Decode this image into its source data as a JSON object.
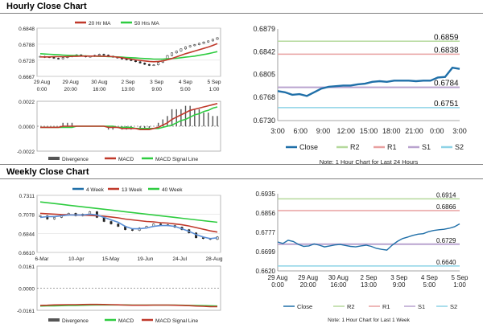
{
  "sections": {
    "hourly_title": "Hourly Close Chart",
    "weekly_title": "Weekly Close Chart"
  },
  "colors": {
    "ma_short": "#c0392b",
    "ma_long": "#2ecc40",
    "macd_line": "#c0392b",
    "macd_signal": "#2ecc40",
    "close_line": "#1f6fa8",
    "r2": "#b5d99c",
    "r1": "#e8a0a0",
    "s1": "#b9a3cf",
    "s2": "#8ed3e6",
    "divergence": "#555555"
  },
  "chart_data": [
    {
      "id": "hourly-price",
      "type": "line",
      "legend": [
        "20 Hr MA",
        "50 Hrs MA"
      ],
      "y_ticks": [
        "0.6848",
        "0.6788",
        "0.6728",
        "0.6667"
      ],
      "ylim": [
        0.6667,
        0.6848
      ],
      "x_ticks": [
        [
          "29 Aug",
          "0:00"
        ],
        [
          "29 Aug",
          "20:00"
        ],
        [
          "30 Aug",
          "16:00"
        ],
        [
          "2 Sep",
          "13:00"
        ],
        [
          "3 Sep",
          "9:00"
        ],
        [
          "4 Sep",
          "5:00"
        ],
        [
          "5 Sep",
          "1:00"
        ]
      ],
      "close": [
        0.6742,
        0.6738,
        0.674,
        0.6735,
        0.6733,
        0.6737,
        0.6741,
        0.6745,
        0.6748,
        0.6744,
        0.674,
        0.6742,
        0.6746,
        0.675,
        0.6747,
        0.6743,
        0.6739,
        0.6736,
        0.6732,
        0.6729,
        0.6726,
        0.6722,
        0.6717,
        0.6712,
        0.6708,
        0.671,
        0.6719,
        0.6731,
        0.6745,
        0.6755,
        0.6762,
        0.677,
        0.6778,
        0.6782,
        0.6786,
        0.6791,
        0.6796,
        0.68,
        0.6806,
        0.6812
      ],
      "ma20": [
        0.674,
        0.674,
        0.674,
        0.6741,
        0.6741,
        0.6741,
        0.6741,
        0.6742,
        0.6742,
        0.6743,
        0.6743,
        0.6743,
        0.6743,
        0.6743,
        0.6742,
        0.6742,
        0.6741,
        0.6739,
        0.6737,
        0.6734,
        0.6732,
        0.6729,
        0.6727,
        0.6725,
        0.6723,
        0.6722,
        0.6723,
        0.6725,
        0.6729,
        0.6734,
        0.674,
        0.6746,
        0.6752,
        0.6757,
        0.6762,
        0.6767,
        0.6772,
        0.6777,
        0.6783,
        0.679
      ],
      "ma50": [
        0.6752,
        0.6751,
        0.675,
        0.6749,
        0.6748,
        0.6747,
        0.6746,
        0.6745,
        0.6745,
        0.6744,
        0.6744,
        0.6743,
        0.6743,
        0.6742,
        0.6742,
        0.6741,
        0.6741,
        0.674,
        0.6739,
        0.6738,
        0.6737,
        0.6736,
        0.6735,
        0.6734,
        0.6733,
        0.6732,
        0.6732,
        0.6732,
        0.6733,
        0.6734,
        0.6735,
        0.6737,
        0.6739,
        0.6741,
        0.6743,
        0.6746,
        0.6749,
        0.6752,
        0.6756,
        0.676
      ]
    },
    {
      "id": "hourly-macd",
      "type": "line",
      "y_ticks": [
        "0.0022",
        "0.0000",
        "-0.0022"
      ],
      "ylim": [
        -0.0022,
        0.0022
      ],
      "legend": [
        "Divergence",
        "MACD",
        "MACD Signal Line"
      ],
      "macd": [
        -0.0001,
        -0.0001,
        -0.0001,
        -0.0001,
        -0.0001,
        0,
        0,
        0,
        0,
        0,
        0,
        0,
        0,
        0,
        0,
        -0.0001,
        -0.0001,
        -0.0001,
        -0.0002,
        -0.0002,
        -0.0002,
        -0.0002,
        -0.0003,
        -0.0003,
        -0.0003,
        -0.0002,
        -0.0001,
        0.0001,
        0.0003,
        0.0006,
        0.0008,
        0.001,
        0.0012,
        0.0014,
        0.0015,
        0.0016,
        0.0017,
        0.0018,
        0.0019,
        0.002
      ],
      "signal": [
        -0.0001,
        -0.0001,
        -0.0001,
        -0.0001,
        -0.0001,
        -0.0001,
        -0.0001,
        -0.0001,
        0,
        0,
        0,
        0,
        0,
        0,
        0,
        0,
        0,
        -0.0001,
        -0.0001,
        -0.0001,
        -0.0001,
        -0.0002,
        -0.0002,
        -0.0002,
        -0.0002,
        -0.0002,
        -0.0002,
        -0.0001,
        0,
        0.0001,
        0.0003,
        0.0005,
        0.0006,
        0.0008,
        0.001,
        0.0011,
        0.0013,
        0.0014,
        0.0016,
        0.0017
      ]
    },
    {
      "id": "hourly-close-24h",
      "type": "line",
      "y_ticks": [
        "0.6879",
        "0.6842",
        "0.6805",
        "0.6768",
        "0.6730"
      ],
      "ylim": [
        0.673,
        0.6879
      ],
      "x_ticks": [
        "3:00",
        "6:00",
        "9:00",
        "12:00",
        "15:00",
        "18:00",
        "21:00",
        "0:00",
        "3:00"
      ],
      "levels": {
        "r2": 0.6859,
        "r1": 0.6838,
        "s1": 0.6784,
        "s2": 0.6751
      },
      "level_labels": {
        "r2": "0.6859",
        "r1": "0.6838",
        "s1": "0.6784",
        "s2": "0.6751"
      },
      "close": [
        0.6778,
        0.6776,
        0.6772,
        0.6773,
        0.677,
        0.6776,
        0.6782,
        0.6785,
        0.6786,
        0.6787,
        0.6787,
        0.6789,
        0.679,
        0.6793,
        0.6794,
        0.6793,
        0.6795,
        0.6795,
        0.6795,
        0.6794,
        0.6795,
        0.6795,
        0.68,
        0.6801,
        0.6816,
        0.6814
      ],
      "legend": [
        "Close",
        "R2",
        "R1",
        "S1",
        "S2"
      ],
      "note": "Note: 1 Hour Chart for Last 24 Hours"
    },
    {
      "id": "weekly-price",
      "type": "line",
      "legend": [
        "4 Week",
        "13 Week",
        "40 Week"
      ],
      "y_ticks": [
        "0.7311",
        "0.7078",
        "0.6844",
        "0.6610"
      ],
      "ylim": [
        0.661,
        0.7311
      ],
      "x_ticks": [
        "6-Mar",
        "10-Apr",
        "15-May",
        "19-Jun",
        "24-Jul",
        "28-Aug"
      ],
      "close": [
        0.706,
        0.702,
        0.704,
        0.707,
        0.709,
        0.706,
        0.708,
        0.711,
        0.704,
        0.699,
        0.696,
        0.693,
        0.689,
        0.688,
        0.691,
        0.693,
        0.696,
        0.695,
        0.694,
        0.692,
        0.689,
        0.685,
        0.679,
        0.678,
        0.677,
        0.68
      ],
      "w4": [
        0.704,
        0.705,
        0.705,
        0.706,
        0.707,
        0.707,
        0.707,
        0.708,
        0.707,
        0.704,
        0.701,
        0.698,
        0.693,
        0.69,
        0.69,
        0.691,
        0.693,
        0.694,
        0.694,
        0.693,
        0.69,
        0.687,
        0.683,
        0.68,
        0.678,
        0.679
      ],
      "w13": [
        0.709,
        0.7085,
        0.708,
        0.7075,
        0.7072,
        0.707,
        0.7068,
        0.7065,
        0.706,
        0.7055,
        0.7045,
        0.7035,
        0.702,
        0.701,
        0.7,
        0.699,
        0.6985,
        0.6975,
        0.697,
        0.696,
        0.695,
        0.6935,
        0.6915,
        0.6895,
        0.6875,
        0.686
      ],
      "w40": [
        0.723,
        0.722,
        0.721,
        0.72,
        0.719,
        0.718,
        0.717,
        0.716,
        0.715,
        0.714,
        0.713,
        0.712,
        0.711,
        0.71,
        0.709,
        0.708,
        0.707,
        0.706,
        0.705,
        0.704,
        0.703,
        0.702,
        0.701,
        0.7,
        0.699,
        0.698
      ]
    },
    {
      "id": "weekly-macd",
      "type": "line",
      "y_ticks": [
        "0.0161",
        "0.0000",
        "-0.0161"
      ],
      "ylim": [
        -0.0161,
        0.0161
      ],
      "legend": [
        "Divergence",
        "MACD",
        "MACD Signal Line"
      ],
      "macd": [
        -0.0125,
        -0.0124,
        -0.0122,
        -0.0121,
        -0.012,
        -0.012,
        -0.0119,
        -0.0118,
        -0.0118,
        -0.0119,
        -0.012,
        -0.0121,
        -0.0123,
        -0.0124,
        -0.0124,
        -0.0124,
        -0.0123,
        -0.0123,
        -0.0123,
        -0.0124,
        -0.0125,
        -0.0127,
        -0.013,
        -0.0132,
        -0.0134,
        -0.0134
      ],
      "signal": [
        -0.013,
        -0.0129,
        -0.0128,
        -0.0127,
        -0.0126,
        -0.0125,
        -0.0124,
        -0.0123,
        -0.0122,
        -0.0122,
        -0.0122,
        -0.0122,
        -0.0122,
        -0.0123,
        -0.0123,
        -0.0123,
        -0.0123,
        -0.0123,
        -0.0123,
        -0.0123,
        -0.0124,
        -0.0125,
        -0.0126,
        -0.0127,
        -0.0128,
        -0.013
      ]
    },
    {
      "id": "weekly-close-hourly",
      "type": "line",
      "y_ticks": [
        "0.6935",
        "0.6856",
        "0.6777",
        "0.6699",
        "0.6620"
      ],
      "ylim": [
        0.662,
        0.6935
      ],
      "x_ticks": [
        [
          "29 Aug",
          "0:00"
        ],
        [
          "29 Aug",
          "20:00"
        ],
        [
          "30 Aug",
          "16:00"
        ],
        [
          "2 Sep",
          "13:00"
        ],
        [
          "3 Sep",
          "9:00"
        ],
        [
          "4 Sep",
          "5:00"
        ],
        [
          "5 Sep",
          "1:00"
        ]
      ],
      "levels": {
        "r2": 0.6914,
        "r1": 0.6866,
        "s1": 0.6729,
        "s2": 0.664
      },
      "level_labels": {
        "r2": "0.6914",
        "r1": "0.6866",
        "s1": "0.6729",
        "s2": "0.6640"
      },
      "close": [
        0.6738,
        0.6732,
        0.6745,
        0.674,
        0.6728,
        0.672,
        0.6722,
        0.673,
        0.6725,
        0.6718,
        0.6722,
        0.6726,
        0.6728,
        0.6724,
        0.672,
        0.6718,
        0.6722,
        0.6725,
        0.672,
        0.6712,
        0.6708,
        0.6705,
        0.6725,
        0.674,
        0.6752,
        0.6758,
        0.6765,
        0.677,
        0.6772,
        0.678,
        0.6785,
        0.6788,
        0.679,
        0.6794,
        0.68,
        0.6812
      ],
      "legend": [
        "Close",
        "R2",
        "R1",
        "S1",
        "S2"
      ],
      "note": "Note: 1 Hour Chart for Last 1 Week"
    }
  ]
}
